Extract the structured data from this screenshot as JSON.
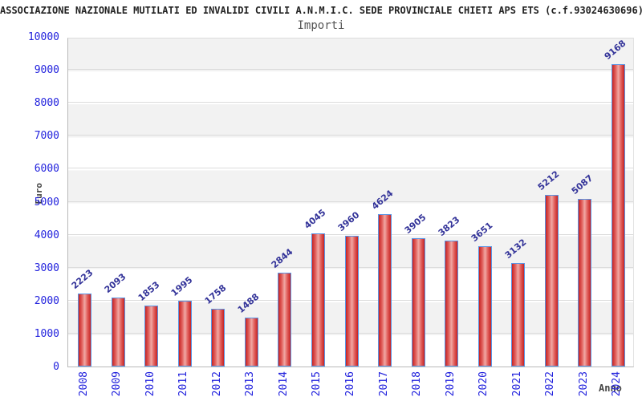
{
  "header": {
    "title": "ASSOCIAZIONE NAZIONALE MUTILATI ED INVALIDI CIVILI A.N.M.I.C. SEDE PROVINCIALE CHIETI APS ETS (c.f.93024630696)",
    "subtitle": "Importi"
  },
  "chart_data": {
    "type": "bar",
    "title": "Importi",
    "xlabel": "Anno",
    "ylabel": "Euro",
    "categories": [
      "2008",
      "2009",
      "2010",
      "2011",
      "2012",
      "2013",
      "2014",
      "2015",
      "2016",
      "2017",
      "2018",
      "2019",
      "2020",
      "2021",
      "2022",
      "2023",
      "2024"
    ],
    "values": [
      2223,
      2093,
      1853,
      1995,
      1758,
      1488,
      2844,
      4045,
      3960,
      4624,
      3905,
      3823,
      3651,
      3132,
      5212,
      5087,
      9168
    ],
    "ylim": [
      0,
      10000
    ],
    "yticks": [
      0,
      1000,
      2000,
      3000,
      4000,
      5000,
      6000,
      7000,
      8000,
      9000,
      10000
    ],
    "grid": true,
    "legend_position": "none",
    "band_colors": [
      "#f2f2f2",
      "#ffffff"
    ]
  },
  "colors": {
    "bar_edge": "#c62323",
    "bar_center": "#f0a8a4",
    "bar_border": "#5a95e5",
    "tick_label": "#2222dd",
    "value_label": "#333399",
    "gridline": "#dcdcdc",
    "axis_title": "#444444",
    "title_text": "#222222"
  }
}
